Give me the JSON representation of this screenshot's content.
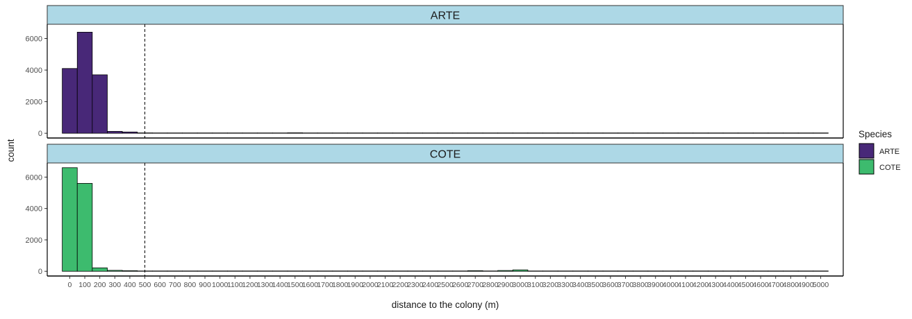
{
  "chart_data": {
    "type": "bar",
    "layout": "faceted histogram, two panels stacked vertically",
    "xlabel": "distance to the colony (m)",
    "ylabel": "count",
    "xlim": [
      -150,
      5150
    ],
    "ylim": [
      -300,
      6900
    ],
    "bin_width": 100,
    "reference_line_x": 500,
    "x_ticks": [
      0,
      100,
      200,
      300,
      400,
      500,
      600,
      700,
      800,
      900,
      1000,
      1100,
      1200,
      1300,
      1400,
      1500,
      1600,
      1700,
      1800,
      1900,
      2000,
      2100,
      2200,
      2300,
      2400,
      2500,
      2600,
      2700,
      2800,
      2900,
      3000,
      3100,
      3200,
      3300,
      3400,
      3500,
      3600,
      3700,
      3800,
      3900,
      4000,
      4100,
      4200,
      4300,
      4400,
      4500,
      4600,
      4700,
      4800,
      4900,
      5000
    ],
    "x_tick_labels": [
      "0",
      "100",
      "200",
      "300",
      "400",
      "500",
      "600",
      "700",
      "800",
      "900",
      "1000",
      "1100",
      "1200",
      "1300",
      "1400",
      "1500",
      "1600",
      "1700",
      "1800",
      "1900",
      "2000",
      "2100",
      "2200",
      "2300",
      "2400",
      "2500",
      "2600",
      "2700",
      "2800",
      "2900",
      "3000",
      "3100",
      "3200",
      "3300",
      "3400",
      "3500",
      "3600",
      "3700",
      "3800",
      "3900",
      "4000",
      "4100",
      "4200",
      "4300",
      "4400",
      "4500",
      "4600",
      "4700",
      "4800",
      "4900",
      "5000"
    ],
    "y_ticks": [
      0,
      2000,
      4000,
      6000
    ],
    "y_tick_labels": [
      "0",
      "2000",
      "4000",
      "6000"
    ],
    "grid": false,
    "legend": {
      "title": "Species",
      "placement": "right",
      "entries": [
        {
          "label": "ARTE",
          "color": "#482878"
        },
        {
          "label": "COTE",
          "color": "#3dbb6e"
        }
      ]
    },
    "strip_color": "#add8e6",
    "panels": [
      {
        "strip_label": "ARTE",
        "color": "#482878",
        "bins": [
          {
            "x": 0,
            "count": 4100
          },
          {
            "x": 100,
            "count": 6400
          },
          {
            "x": 200,
            "count": 3700
          },
          {
            "x": 300,
            "count": 120
          },
          {
            "x": 400,
            "count": 80
          },
          {
            "x": 500,
            "count": 25
          },
          {
            "x": 600,
            "count": 20
          },
          {
            "x": 700,
            "count": 15
          },
          {
            "x": 800,
            "count": 15
          },
          {
            "x": 900,
            "count": 10
          },
          {
            "x": 1000,
            "count": 10
          },
          {
            "x": 1100,
            "count": 10
          },
          {
            "x": 1200,
            "count": 10
          },
          {
            "x": 1300,
            "count": 5
          },
          {
            "x": 1400,
            "count": 5
          },
          {
            "x": 1500,
            "count": 30
          },
          {
            "x": 1600,
            "count": 10
          },
          {
            "x": 1700,
            "count": 5
          },
          {
            "x": 1800,
            "count": 5
          }
        ]
      },
      {
        "strip_label": "COTE",
        "color": "#3dbb6e",
        "bins": [
          {
            "x": 0,
            "count": 6600
          },
          {
            "x": 100,
            "count": 5600
          },
          {
            "x": 200,
            "count": 220
          },
          {
            "x": 300,
            "count": 60
          },
          {
            "x": 400,
            "count": 40
          },
          {
            "x": 500,
            "count": 10
          },
          {
            "x": 600,
            "count": 10
          },
          {
            "x": 700,
            "count": 5
          },
          {
            "x": 2700,
            "count": 40
          },
          {
            "x": 2800,
            "count": 10
          },
          {
            "x": 2900,
            "count": 50
          },
          {
            "x": 3000,
            "count": 90
          },
          {
            "x": 3100,
            "count": 10
          }
        ]
      }
    ]
  }
}
